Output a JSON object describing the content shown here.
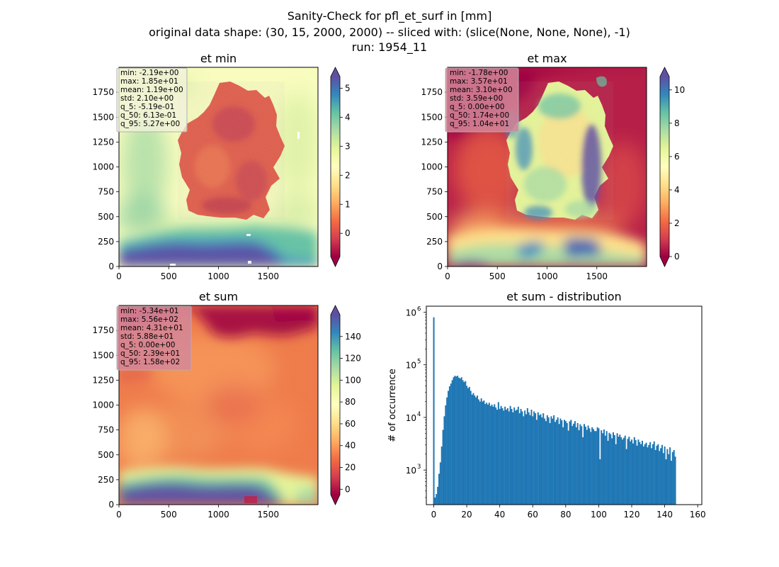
{
  "figure": {
    "title_lines": [
      "Sanity-Check for pfl_et_surf in [mm]",
      "original data shape: (30, 15, 2000, 2000) -- sliced with: (slice(None, None, None), -1)",
      "run: 1954_11"
    ]
  },
  "chart_data": [
    {
      "type": "heatmap",
      "title": "et min",
      "x_ticks": [
        0,
        500,
        1000,
        1500
      ],
      "y_ticks": [
        0,
        250,
        500,
        750,
        1000,
        1250,
        1500,
        1750
      ],
      "xlim": [
        0,
        2000
      ],
      "ylim": [
        0,
        2000
      ],
      "colormap": "Spectral",
      "colorbar_ticks": [
        0,
        1,
        2,
        3,
        4,
        5
      ],
      "colorbar_range": [
        -0.8,
        5.4
      ],
      "colorbar_extend": "both",
      "stats_lines": [
        "min: -2.19e+00",
        "max: 1.85e+01",
        "mean: 1.19e+00",
        "std: 2.10e+00",
        "q_5: -5.19e-01",
        "q_50: 6.13e-01",
        "q_95: 5.27e+00"
      ],
      "stats_box_color": "#f2f2dc"
    },
    {
      "type": "heatmap",
      "title": "et max",
      "x_ticks": [
        0,
        500,
        1000,
        1500
      ],
      "y_ticks": [
        0,
        250,
        500,
        750,
        1000,
        1250,
        1500,
        1750
      ],
      "xlim": [
        0,
        2000
      ],
      "ylim": [
        0,
        2000
      ],
      "colormap": "Spectral",
      "colorbar_ticks": [
        0,
        2,
        4,
        6,
        8,
        10
      ],
      "colorbar_range": [
        0,
        10.8
      ],
      "colorbar_extend": "both",
      "stats_lines": [
        "min: -1.78e+00",
        "max: 3.57e+01",
        "mean: 3.10e+00",
        "std: 3.59e+00",
        "q_5: 0.00e+00",
        "q_50: 1.74e+00",
        "q_95: 1.04e+01"
      ],
      "stats_box_color": "#d4879a"
    },
    {
      "type": "heatmap",
      "title": "et sum",
      "x_ticks": [
        0,
        500,
        1000,
        1500
      ],
      "y_ticks": [
        0,
        250,
        500,
        750,
        1000,
        1250,
        1500,
        1750
      ],
      "xlim": [
        0,
        2000
      ],
      "ylim": [
        0,
        2000
      ],
      "colormap": "Spectral",
      "colorbar_ticks": [
        0,
        20,
        40,
        60,
        80,
        100,
        120,
        140
      ],
      "colorbar_range": [
        -5,
        160
      ],
      "colorbar_extend": "both",
      "stats_lines": [
        "min: -5.34e+01",
        "max: 5.56e+02",
        "mean: 4.31e+01",
        "std: 5.88e+01",
        "q_5: 0.00e+00",
        "q_50: 2.39e+01",
        "q_95: 1.58e+02"
      ],
      "stats_box_color": "#d4879a"
    },
    {
      "type": "bar",
      "title": "et sum - distribution",
      "ylabel": "# of occurrence",
      "y_scale": "log",
      "xlim": [
        -4.5,
        162.5
      ],
      "ylim": [
        220,
        1300000
      ],
      "x_ticks": [
        0,
        20,
        40,
        60,
        80,
        100,
        120,
        140,
        160
      ],
      "y_ticks": [
        1000,
        10000,
        100000,
        1000000
      ],
      "y_tick_labels": [
        {
          "base": "10",
          "exp": "3"
        },
        {
          "base": "10",
          "exp": "4"
        },
        {
          "base": "10",
          "exp": "5"
        },
        {
          "base": "10",
          "exp": "6"
        }
      ],
      "bar_color": "#1f77b4",
      "bin_start": -0.4,
      "bin_width": 0.8,
      "values": [
        800000,
        300,
        350,
        480,
        850,
        1400,
        2800,
        5800,
        10500,
        17000,
        24000,
        32000,
        39000,
        44000,
        51000,
        58000,
        62000,
        60000,
        62000,
        57000,
        55000,
        58000,
        51000,
        47000,
        49000,
        40000,
        36000,
        38000,
        32000,
        27000,
        29000,
        26000,
        24000,
        26000,
        22000,
        20000,
        23000,
        20000,
        21000,
        18000,
        19000,
        17500,
        19000,
        16500,
        17500,
        16000,
        17800,
        15500,
        14000,
        19500,
        14500,
        16500,
        15000,
        13500,
        16000,
        14000,
        15000,
        13000,
        16500,
        14500,
        12500,
        15500,
        13500,
        14000,
        16000,
        12000,
        14500,
        13000,
        10500,
        13500,
        11500,
        15000,
        12500,
        11000,
        14000,
        10500,
        13000,
        12000,
        9000,
        12500,
        11000,
        11500,
        10000,
        12000,
        9500,
        8500,
        11000,
        10000,
        7800,
        10500,
        9500,
        11000,
        8200,
        9000,
        10000,
        7500,
        9500,
        8800,
        6500,
        9000,
        8500,
        7800,
        5600,
        8400,
        9000,
        6900,
        7600,
        8500,
        6500,
        7800,
        5700,
        7400,
        6800,
        4200,
        7500,
        6700,
        5800,
        7000,
        6200,
        5300,
        6500,
        6000,
        5500,
        5500,
        6500,
        6200,
        1600,
        5700,
        5000,
        5900,
        4500,
        5500,
        3600,
        5100,
        4800,
        4000,
        5200,
        4600,
        3100,
        5000,
        4300,
        4700,
        4200,
        3800,
        4100,
        4500,
        2500,
        3900,
        4300,
        3500,
        3800,
        3200,
        4200,
        3700,
        2900,
        3800,
        3400,
        3100,
        3600,
        2800,
        3100,
        3300,
        2700,
        3000,
        3400,
        2600,
        3100,
        3500,
        2400,
        2900,
        3100,
        2300,
        2600,
        3000,
        2100,
        2800,
        1600,
        2500,
        2000,
        2700,
        1500,
        2200,
        2400,
        1800
      ]
    }
  ]
}
